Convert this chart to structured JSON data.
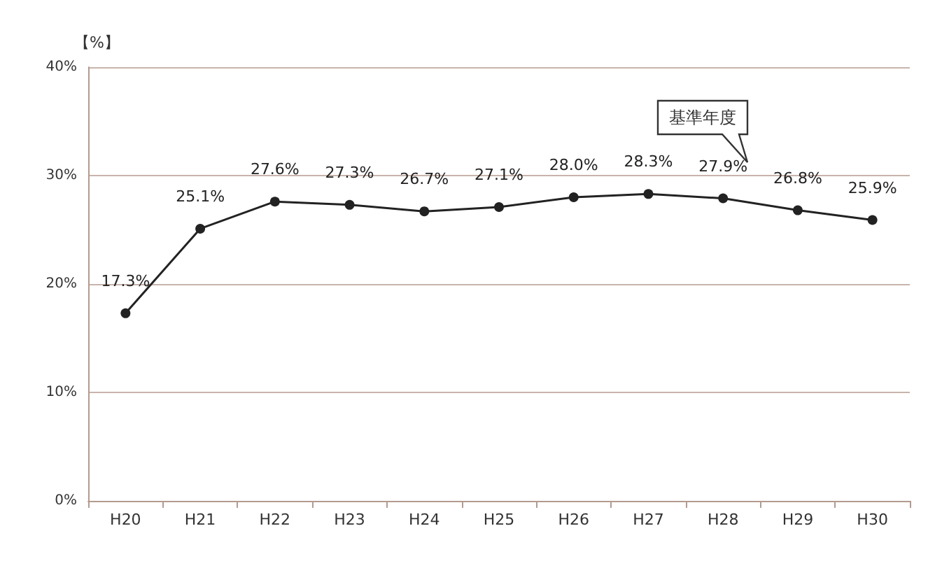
{
  "chart_data": {
    "type": "line",
    "ylabel": "【%】",
    "categories": [
      "H20",
      "H21",
      "H22",
      "H23",
      "H24",
      "H25",
      "H26",
      "H27",
      "H28",
      "H29",
      "H30"
    ],
    "series": [
      {
        "color": "#222222",
        "values": [
          17.3,
          25.1,
          27.6,
          27.3,
          26.7,
          27.1,
          28.0,
          28.3,
          27.9,
          26.8,
          25.9
        ],
        "value_labels": [
          "17.3%",
          "25.1%",
          "27.6%",
          "27.3%",
          "26.7%",
          "27.1%",
          "28.0%",
          "28.3%",
          "27.9%",
          "26.8%",
          "25.9%"
        ]
      }
    ],
    "ylim": [
      0,
      40
    ],
    "yticks": [
      {
        "value": 0,
        "label": "0%"
      },
      {
        "value": 10,
        "label": "10%"
      },
      {
        "value": 20,
        "label": "20%"
      },
      {
        "value": 30,
        "label": "30%"
      },
      {
        "value": 40,
        "label": "40%"
      }
    ],
    "grid": "y",
    "marker": "circle",
    "line_style": "solid",
    "annotations": [
      "基準年度"
    ]
  }
}
